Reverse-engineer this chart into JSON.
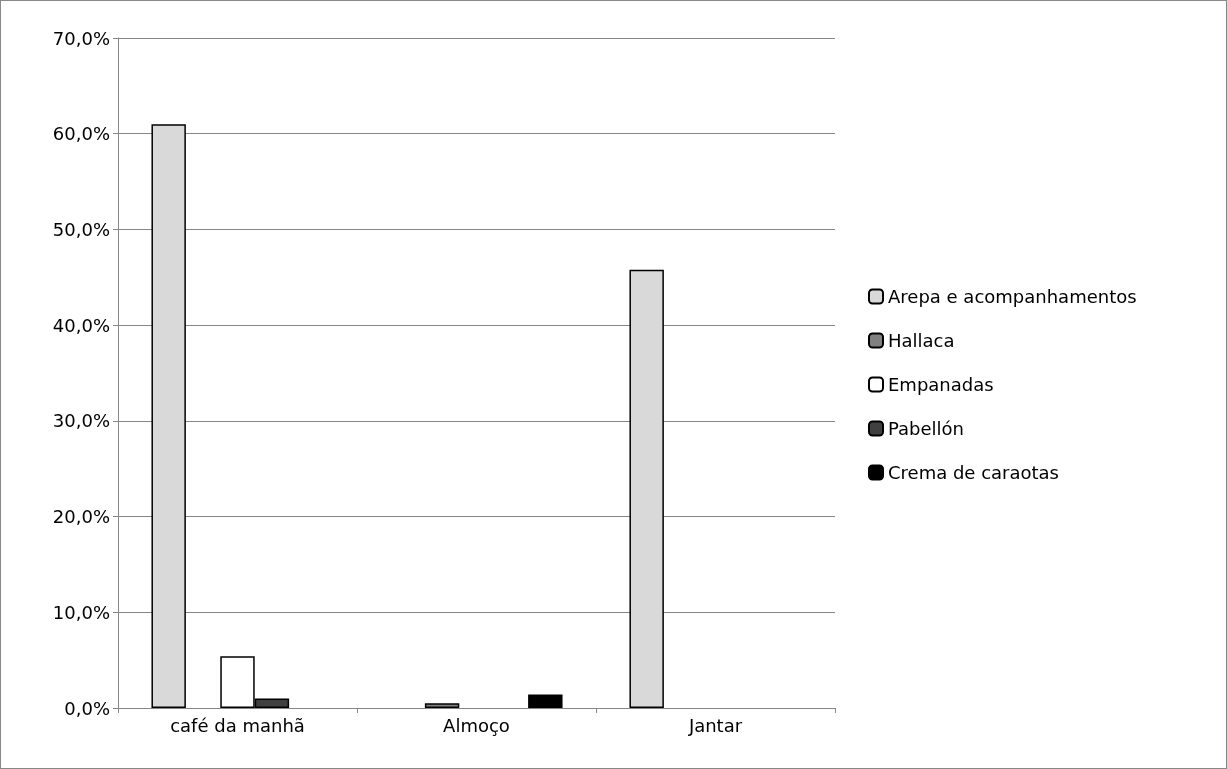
{
  "chart_data": {
    "type": "bar",
    "categories": [
      "café da manhã",
      "Almoço",
      "Jantar"
    ],
    "series": [
      {
        "name": "Arepa e acompanhamentos",
        "color": "#d9d9d9",
        "values": [
          61.0,
          null,
          45.8
        ]
      },
      {
        "name": "Hallaca",
        "color": "#808080",
        "values": [
          null,
          0.5,
          null
        ]
      },
      {
        "name": "Empanadas",
        "color": "#ffffff",
        "values": [
          5.4,
          null,
          null
        ]
      },
      {
        "name": "Pabellón",
        "color": "#404040",
        "values": [
          1.0,
          null,
          null
        ]
      },
      {
        "name": "Crema de caraotas",
        "color": "#000000",
        "values": [
          null,
          1.4,
          null
        ]
      }
    ],
    "ylim": [
      0,
      70
    ],
    "yticks": [
      {
        "value": 0,
        "label": "0,0%"
      },
      {
        "value": 10,
        "label": "10,0%"
      },
      {
        "value": 20,
        "label": "20,0%"
      },
      {
        "value": 30,
        "label": "30,0%"
      },
      {
        "value": 40,
        "label": "40,0%"
      },
      {
        "value": 50,
        "label": "50,0%"
      },
      {
        "value": 60,
        "label": "60,0%"
      },
      {
        "value": 70,
        "label": "70,0%"
      }
    ],
    "grid": "y",
    "legend": "right"
  }
}
